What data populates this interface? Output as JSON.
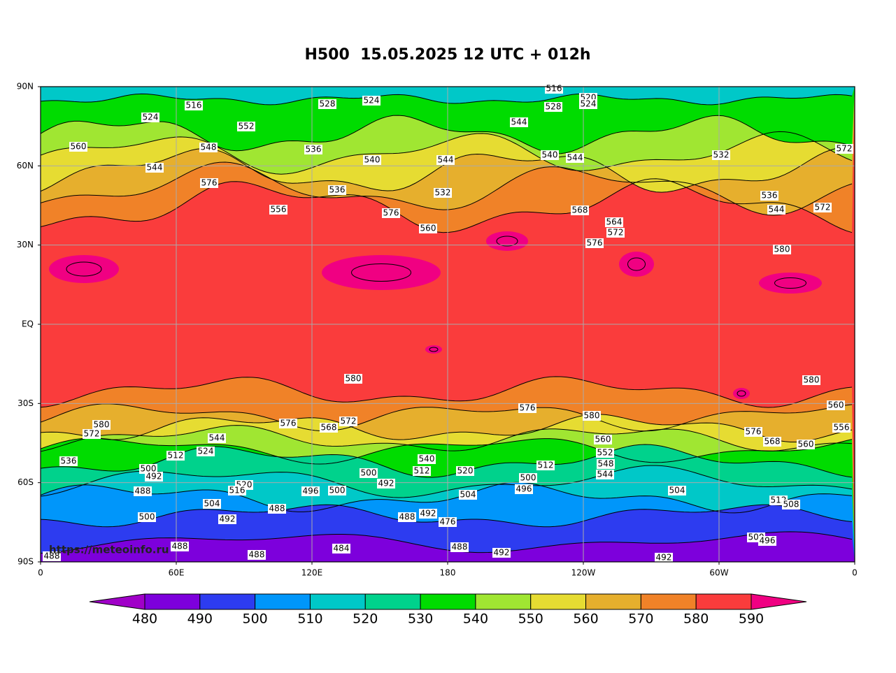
{
  "title": "H500  15.05.2025 12 UTC + 012h",
  "watermark": "https://meteoinfo.ru",
  "y_axis_labels": [
    "90N",
    "60N",
    "30N",
    "EQ",
    "30S",
    "60S",
    "90S"
  ],
  "x_axis_labels": [
    "0",
    "60E",
    "120E",
    "180",
    "120W",
    "60W",
    "0"
  ],
  "colorbar": {
    "labels": [
      480,
      490,
      500,
      510,
      520,
      530,
      540,
      550,
      560,
      570,
      580,
      590
    ],
    "colors": [
      "#a000c8",
      "#7d00dc",
      "#2d3cf0",
      "#0096fa",
      "#00c8c8",
      "#00d28c",
      "#00dc00",
      "#a0e632",
      "#e6dc32",
      "#e6af2d",
      "#f08228",
      "#fa3c3c",
      "#f00082"
    ]
  },
  "contour_labels": [
    524,
    528,
    516,
    524,
    552,
    536,
    540,
    544,
    548,
    560,
    544,
    532,
    536,
    576,
    560,
    540,
    544,
    528,
    544,
    568,
    572,
    564,
    576,
    532,
    536,
    544,
    572,
    572,
    580,
    556,
    576,
    580,
    576,
    580,
    580,
    560,
    556,
    576,
    568,
    572,
    580,
    572,
    536,
    544,
    524,
    512,
    500,
    492,
    488,
    500,
    504,
    492,
    520,
    516,
    488,
    496,
    500,
    500,
    492,
    520,
    504,
    512,
    500,
    496,
    560,
    552,
    548,
    544,
    504,
    512,
    508,
    576,
    568,
    560,
    500,
    496,
    492,
    492,
    488,
    484,
    488,
    488,
    488,
    476,
    492,
    488,
    540,
    512,
    516,
    520,
    524
  ]
}
